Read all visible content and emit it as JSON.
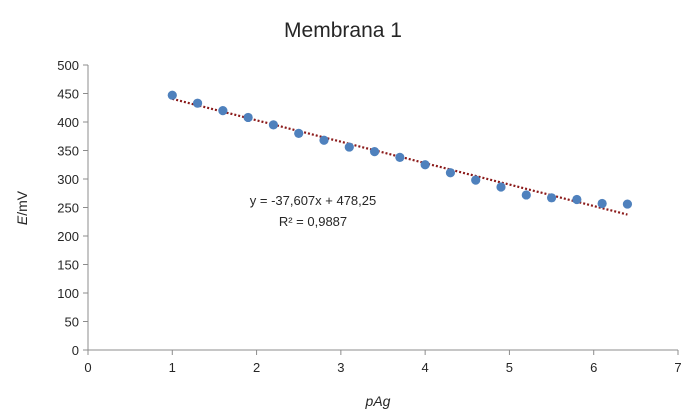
{
  "chart_data": {
    "type": "scatter",
    "title": "Membrana 1",
    "xlabel": "pAg",
    "ylabel_italic": "E",
    "ylabel_rest": "/mV",
    "xlim": [
      0,
      7
    ],
    "ylim": [
      0,
      500
    ],
    "x_ticks": [
      "0",
      "1",
      "2",
      "3",
      "4",
      "5",
      "6",
      "7"
    ],
    "y_ticks": [
      "0",
      "50",
      "100",
      "150",
      "200",
      "250",
      "300",
      "350",
      "400",
      "450",
      "500"
    ],
    "grid": false,
    "legend": "none",
    "series": [
      {
        "marker_color": "#4f81bd",
        "points": [
          {
            "x": 1.0,
            "y": 447
          },
          {
            "x": 1.3,
            "y": 433
          },
          {
            "x": 1.6,
            "y": 420
          },
          {
            "x": 1.9,
            "y": 408
          },
          {
            "x": 2.2,
            "y": 395
          },
          {
            "x": 2.5,
            "y": 380
          },
          {
            "x": 2.8,
            "y": 368
          },
          {
            "x": 3.1,
            "y": 356
          },
          {
            "x": 3.4,
            "y": 348
          },
          {
            "x": 3.7,
            "y": 338
          },
          {
            "x": 4.0,
            "y": 325
          },
          {
            "x": 4.3,
            "y": 311
          },
          {
            "x": 4.6,
            "y": 298
          },
          {
            "x": 4.9,
            "y": 286
          },
          {
            "x": 5.2,
            "y": 272
          },
          {
            "x": 5.5,
            "y": 267
          },
          {
            "x": 5.8,
            "y": 264
          },
          {
            "x": 6.1,
            "y": 257
          },
          {
            "x": 6.4,
            "y": 256
          }
        ]
      }
    ],
    "trendline": {
      "type": "linear",
      "slope": -37.607,
      "intercept": 478.25,
      "x_range": [
        1.0,
        6.4
      ],
      "color": "#8b1a1a",
      "style": "dotted",
      "equation": "y = -37,607x + 478,25",
      "r_squared": "R² = 0,9887"
    }
  }
}
